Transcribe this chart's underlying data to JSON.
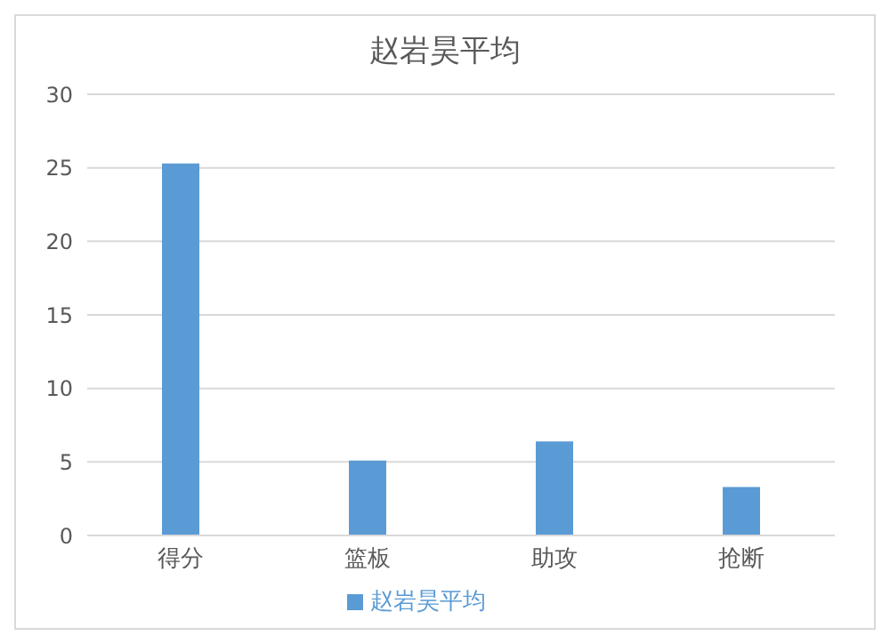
{
  "chart_data": {
    "type": "bar",
    "title": "赵岩昊平均",
    "categories": [
      "得分",
      "篮板",
      "助攻",
      "抢断"
    ],
    "series": [
      {
        "name": "赵岩昊平均",
        "color": "#5b9bd5",
        "values": [
          25.3,
          5.1,
          6.4,
          3.3
        ]
      }
    ],
    "ylim": [
      0,
      30
    ],
    "yticks": [
      0,
      5,
      10,
      15,
      20,
      25,
      30
    ],
    "grid": "y",
    "legend": "bottom"
  }
}
